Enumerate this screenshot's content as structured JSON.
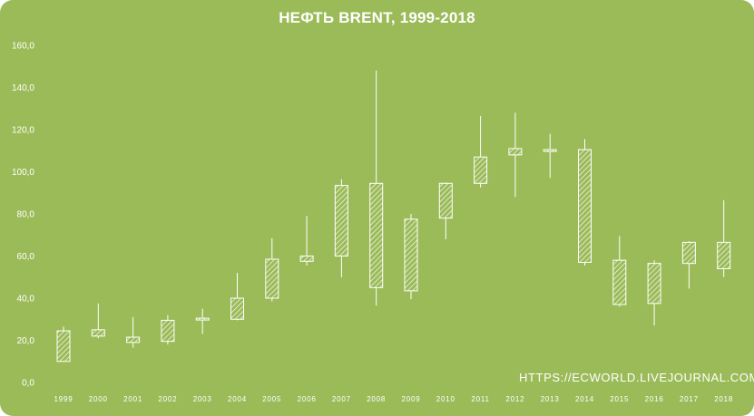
{
  "title": "НЕФТЬ BRENT,  1999-2018",
  "watermark": "HTTPS://ECWORLD.LIVEJOURNAL.COM",
  "colors": {
    "background": "#9bbb59",
    "text": "#ffffff",
    "candle": "#ffffff"
  },
  "chart_data": {
    "type": "candlestick",
    "title": "НЕФТЬ BRENT,  1999-2018",
    "ylim": [
      0,
      160
    ],
    "yticks": [
      "0,0",
      "20,0",
      "40,0",
      "60,0",
      "80,0",
      "100,0",
      "120,0",
      "140,0",
      "160,0"
    ],
    "grid": false,
    "candles": [
      {
        "year": "1999",
        "open": 10.0,
        "close": 24.5,
        "high": 26.5,
        "low": 10.0
      },
      {
        "year": "2000",
        "open": 25.0,
        "close": 22.0,
        "high": 37.5,
        "low": 21.0
      },
      {
        "year": "2001",
        "open": 21.5,
        "close": 19.0,
        "high": 31.0,
        "low": 16.5
      },
      {
        "year": "2002",
        "open": 19.5,
        "close": 29.5,
        "high": 32.0,
        "low": 18.0
      },
      {
        "year": "2003",
        "open": 30.5,
        "close": 30.0,
        "high": 35.0,
        "low": 23.0
      },
      {
        "year": "2004",
        "open": 30.0,
        "close": 40.0,
        "high": 52.0,
        "low": 29.5
      },
      {
        "year": "2005",
        "open": 40.0,
        "close": 58.5,
        "high": 68.5,
        "low": 38.5
      },
      {
        "year": "2006",
        "open": 60.0,
        "close": 57.5,
        "high": 79.0,
        "low": 55.5
      },
      {
        "year": "2007",
        "open": 60.0,
        "close": 93.5,
        "high": 96.5,
        "low": 50.0
      },
      {
        "year": "2008",
        "open": 94.5,
        "close": 45.0,
        "high": 148.0,
        "low": 36.5
      },
      {
        "year": "2009",
        "open": 43.5,
        "close": 77.5,
        "high": 80.0,
        "low": 39.5
      },
      {
        "year": "2010",
        "open": 78.0,
        "close": 94.5,
        "high": 95.0,
        "low": 68.0
      },
      {
        "year": "2011",
        "open": 94.5,
        "close": 107.0,
        "high": 126.5,
        "low": 92.5
      },
      {
        "year": "2012",
        "open": 108.0,
        "close": 111.0,
        "high": 128.0,
        "low": 88.0
      },
      {
        "year": "2013",
        "open": 110.5,
        "close": 110.0,
        "high": 118.0,
        "low": 97.0
      },
      {
        "year": "2014",
        "open": 110.5,
        "close": 57.0,
        "high": 115.5,
        "low": 55.5
      },
      {
        "year": "2015",
        "open": 58.0,
        "close": 37.0,
        "high": 69.5,
        "low": 36.0
      },
      {
        "year": "2016",
        "open": 37.5,
        "close": 56.5,
        "high": 58.0,
        "low": 27.0
      },
      {
        "year": "2017",
        "open": 56.5,
        "close": 66.5,
        "high": 67.0,
        "low": 44.5
      },
      {
        "year": "2018",
        "open": 66.5,
        "close": 54.0,
        "high": 86.5,
        "low": 50.0
      }
    ]
  }
}
